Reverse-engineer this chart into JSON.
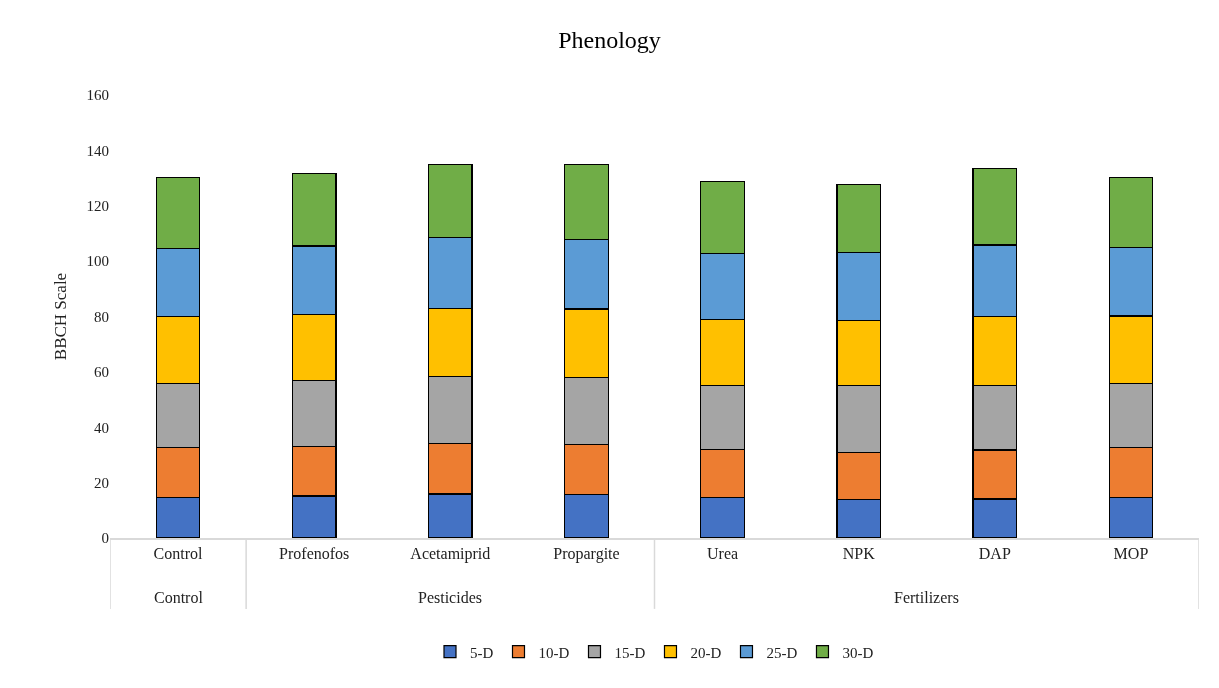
{
  "chart_data": {
    "type": "bar",
    "title": "Phenology",
    "ylabel": "BBCH Scale",
    "stacked": true,
    "categories": [
      "Control",
      "Profenofos",
      "Acetamiprid",
      "Propargite",
      "Urea",
      "NPK",
      "DAP",
      "MOP"
    ],
    "annotations": [
      "Control",
      "Pesticides",
      "Fertilizers"
    ],
    "series": [
      {
        "name": "5-D",
        "color": "#4472c4",
        "values": [
          14.7,
          15.2,
          15.9,
          15.6,
          14.7,
          14.0,
          14.1,
          14.7
        ]
      },
      {
        "name": "10-D",
        "color": "#ed7d31",
        "values": [
          18.0,
          17.8,
          18.2,
          18.1,
          17.4,
          17.0,
          17.7,
          18.0
        ]
      },
      {
        "name": "15-D",
        "color": "#a5a5a5",
        "values": [
          23.2,
          23.8,
          24.2,
          24.4,
          23.1,
          24.0,
          23.4,
          23.1
        ]
      },
      {
        "name": "20-D",
        "color": "#ffc000",
        "values": [
          24.0,
          23.9,
          24.7,
          24.6,
          23.7,
          23.7,
          24.7,
          24.4
        ]
      },
      {
        "name": "25-D",
        "color": "#5b9bd5",
        "values": [
          24.7,
          24.8,
          25.5,
          25.1,
          23.9,
          24.3,
          25.9,
          24.7
        ]
      },
      {
        "name": "30-D",
        "color": "#70ad47",
        "values": [
          25.7,
          26.1,
          26.3,
          27.2,
          26.1,
          24.8,
          27.8,
          25.2
        ]
      }
    ],
    "ylim": [
      0,
      160
    ],
    "yticks": [
      0,
      20,
      40,
      60,
      80,
      100,
      120,
      140,
      160
    ],
    "grid": false,
    "legend": "bottom"
  }
}
